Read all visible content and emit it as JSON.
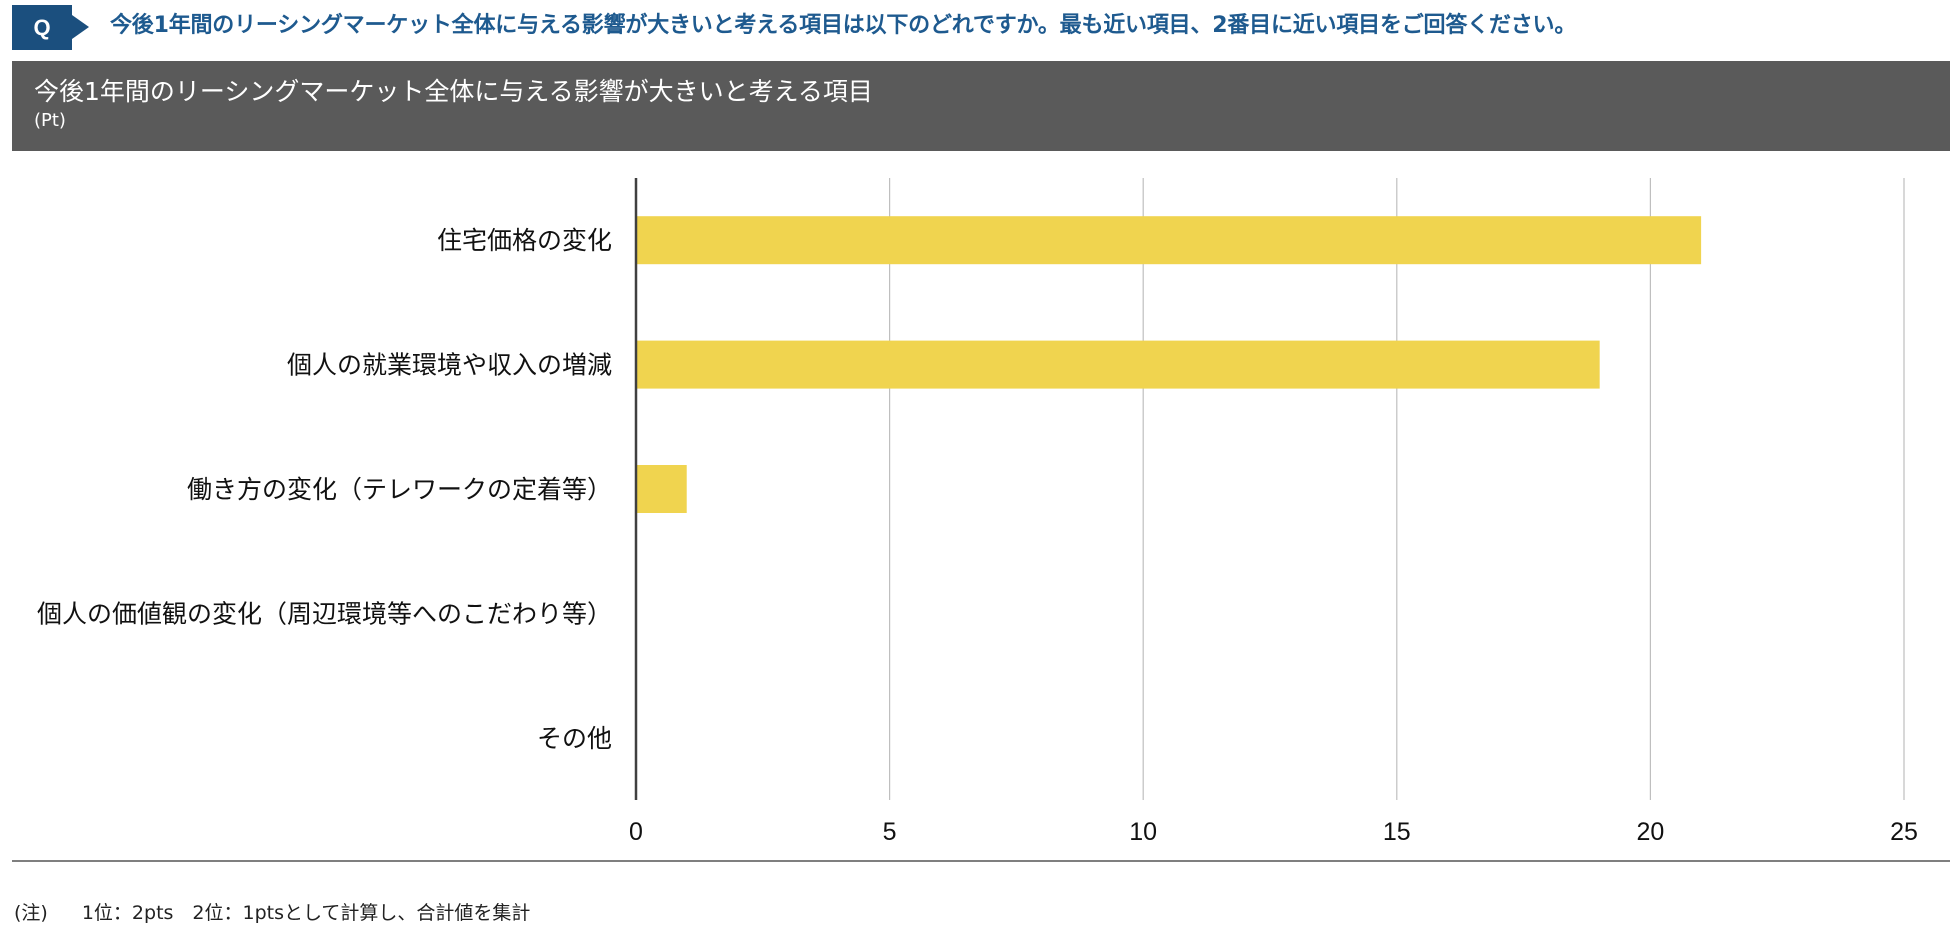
{
  "header": {
    "badge": "Q",
    "question": "今後1年間のリーシングマーケット全体に与える影響が大きいと考える項目は以下のどれですか。最も近い項目、2番目に近い項目をご回答ください。"
  },
  "banner": {
    "title": "今後1年間のリーシングマーケット全体に与える影響が大きいと考える項目",
    "unit": "(Pt)"
  },
  "colors": {
    "bar": "#f0d44f",
    "gridline": "#bfbfbf",
    "axis": "#404040",
    "question_text": "#1e5a8f",
    "badge": "#1b4f7e",
    "banner": "#5a5a5a"
  },
  "chart_data": {
    "type": "bar",
    "orientation": "horizontal",
    "categories": [
      "住宅価格の変化",
      "個人の就業環境や収入の増減",
      "働き方の変化（テレワークの定着等）",
      "個人の価値観の変化（周辺環境等へのこだわり等）",
      "その他"
    ],
    "values": [
      21,
      19,
      1,
      0,
      0
    ],
    "xlim": [
      0,
      25
    ],
    "xticks": [
      "0",
      "5",
      "10",
      "15",
      "20",
      "25"
    ],
    "xtick_values": [
      0,
      5,
      10,
      15,
      20,
      25
    ],
    "grid": "vertical",
    "legend": "none"
  },
  "footnote": {
    "label": "(注)",
    "text": "1位：2pts　2位：1ptsとして計算し、合計値を集計"
  }
}
